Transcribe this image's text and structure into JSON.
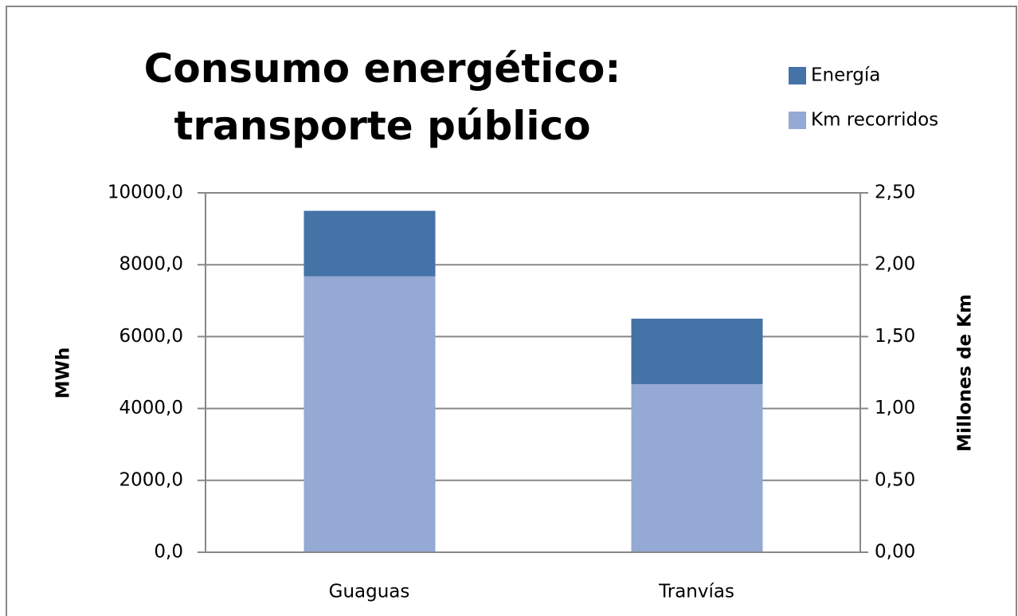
{
  "chart_data": {
    "type": "bar",
    "title": "Consumo energético: transporte público",
    "categories": [
      "Guaguas",
      "Tranvías"
    ],
    "series": [
      {
        "name": "Energía",
        "color": "#4572a7",
        "values": [
          9500,
          6500
        ]
      },
      {
        "name": "Km recorridos",
        "color": "#94a9d3",
        "values": [
          1.92,
          1.17
        ],
        "axis": "y2"
      }
    ],
    "ylabel": "MWh",
    "y2label": "Millones de Km",
    "ylim": [
      0,
      10000
    ],
    "yticks": [
      {
        "value": 0,
        "label": "0,0"
      },
      {
        "value": 2000,
        "label": "2000,0"
      },
      {
        "value": 4000,
        "label": "4000,0"
      },
      {
        "value": 6000,
        "label": "6000,0"
      },
      {
        "value": 8000,
        "label": "8000,0"
      },
      {
        "value": 10000,
        "label": "10000,0"
      }
    ],
    "y2lim": [
      0,
      2.5
    ],
    "y2ticks": [
      {
        "value": 0,
        "label": "0,00"
      },
      {
        "value": 0.5,
        "label": "0,50"
      },
      {
        "value": 1,
        "label": "1,00"
      },
      {
        "value": 1.5,
        "label": "1,50"
      },
      {
        "value": 2,
        "label": "2,00"
      },
      {
        "value": 2.5,
        "label": "2,50"
      }
    ],
    "grid": true,
    "legend": "top-right"
  }
}
